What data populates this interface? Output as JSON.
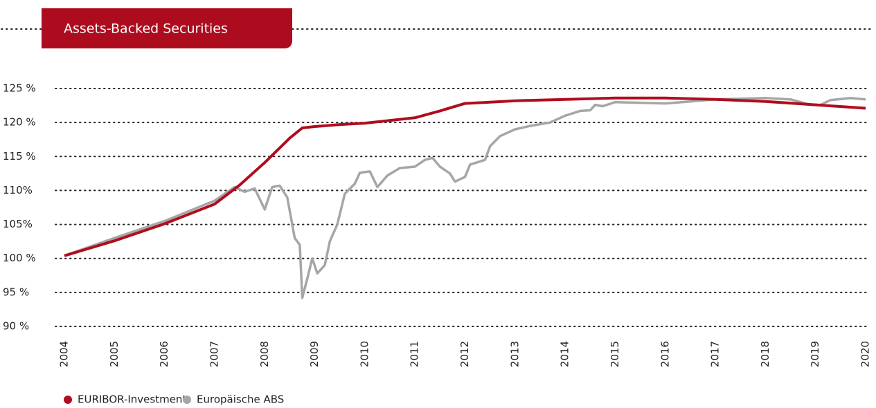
{
  "chart_data": {
    "type": "line",
    "title": "Assets-Backed Securities",
    "xlim": [
      2004,
      2020
    ],
    "xticks": [
      2004,
      2005,
      2006,
      2007,
      2008,
      2009,
      2010,
      2011,
      2012,
      2013,
      2014,
      2015,
      2016,
      2017,
      2018,
      2019,
      2020
    ],
    "ylim": [
      90,
      125
    ],
    "yticks": [
      {
        "value": 90,
        "label": "90 %"
      },
      {
        "value": 95,
        "label": "95 %"
      },
      {
        "value": 100,
        "label": "100 %"
      },
      {
        "value": 105,
        "label": "105%"
      },
      {
        "value": 110,
        "label": "110%"
      },
      {
        "value": 115,
        "label": "115 %"
      },
      {
        "value": 120,
        "label": "120 %"
      },
      {
        "value": 125,
        "label": "125 %"
      }
    ],
    "grid": true,
    "series": [
      {
        "name": "EURIBOR-Investment",
        "color": "#b00d1e",
        "x": [
          2004,
          2005,
          2006,
          2007,
          2007.5,
          2008,
          2008.5,
          2008.75,
          2009,
          2009.5,
          2010,
          2011,
          2011.5,
          2012,
          2012.5,
          2013,
          2014,
          2015,
          2016,
          2017,
          2018,
          2019,
          2020
        ],
        "values": [
          100.4,
          102.6,
          105.1,
          108.0,
          110.8,
          114.1,
          117.7,
          119.2,
          119.4,
          119.7,
          119.9,
          120.7,
          121.7,
          122.8,
          123.0,
          123.2,
          123.4,
          123.6,
          123.6,
          123.4,
          123.1,
          122.6,
          122.1
        ]
      },
      {
        "name": "Europäische ABS",
        "color": "#a6a6a6",
        "x": [
          2004,
          2005,
          2006,
          2007,
          2007.4,
          2007.6,
          2007.8,
          2008,
          2008.15,
          2008.3,
          2008.45,
          2008.6,
          2008.7,
          2008.75,
          2008.85,
          2008.95,
          2009.05,
          2009.2,
          2009.3,
          2009.45,
          2009.6,
          2009.8,
          2009.9,
          2010.1,
          2010.25,
          2010.45,
          2010.7,
          2011,
          2011.2,
          2011.35,
          2011.5,
          2011.7,
          2011.8,
          2012,
          2012.1,
          2012.4,
          2012.5,
          2012.7,
          2013,
          2013.3,
          2013.7,
          2014,
          2014.3,
          2014.5,
          2014.6,
          2014.75,
          2015,
          2015.5,
          2016,
          2016.5,
          2017,
          2017.5,
          2018,
          2018.5,
          2018.9,
          2019.1,
          2019.3,
          2019.7,
          2020
        ],
        "values": [
          100.4,
          103.0,
          105.5,
          108.5,
          110.5,
          109.8,
          110.3,
          107.2,
          110.5,
          110.7,
          109.0,
          103.0,
          102.0,
          94.2,
          97.0,
          100.0,
          97.8,
          99.0,
          102.5,
          105.0,
          109.5,
          111.0,
          112.6,
          112.8,
          110.5,
          112.2,
          113.3,
          113.5,
          114.5,
          114.8,
          113.5,
          112.5,
          111.3,
          112.0,
          113.8,
          114.5,
          116.5,
          118.0,
          119.0,
          119.5,
          120.0,
          121.0,
          121.7,
          121.8,
          122.6,
          122.4,
          123.0,
          122.9,
          122.8,
          123.1,
          123.4,
          123.5,
          123.6,
          123.4,
          122.6,
          122.6,
          123.3,
          123.6,
          123.4
        ]
      }
    ]
  }
}
